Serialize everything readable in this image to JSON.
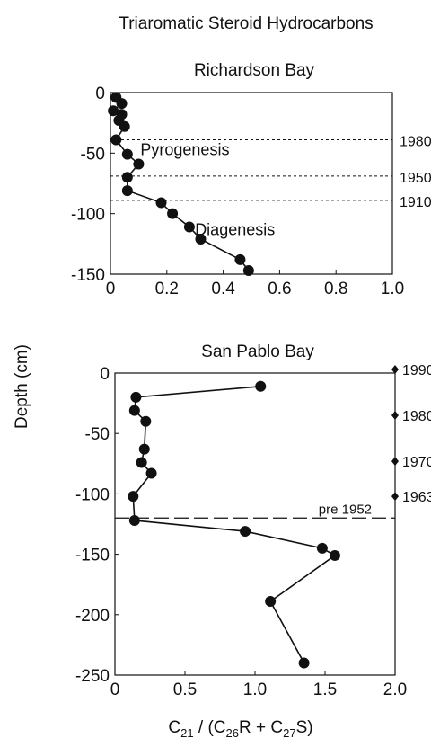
{
  "figure": {
    "title": "Triaromatic Steroid Hydrocarbons",
    "shared_ylabel": "Depth (cm)",
    "shared_xlabel": {
      "parts": [
        "C",
        "21",
        " / (C",
        "26",
        "R + C",
        "27",
        "S)"
      ]
    }
  },
  "chart_data": [
    {
      "type": "line",
      "title": "Richardson Bay",
      "xlabel": "C21 / (C26R + C27S)",
      "ylabel": "Depth (cm)",
      "xlim": [
        0,
        1.0
      ],
      "ylim": [
        -150,
        0
      ],
      "xticks": [
        "0",
        "0.2",
        "0.4",
        "0.6",
        "0.8",
        "1.0"
      ],
      "yticks": [
        "0",
        "-50",
        "-100",
        "-150"
      ],
      "xtick_values": [
        0,
        0.2,
        0.4,
        0.6,
        0.8,
        1.0
      ],
      "ytick_values": [
        0,
        -50,
        -100,
        -150
      ],
      "grid": false,
      "series": [
        {
          "x": [
            0.02,
            0.04,
            0.01,
            0.04,
            0.03,
            0.05,
            0.02,
            0.06,
            0.1,
            0.06,
            0.06,
            0.18,
            0.22,
            0.28,
            0.32,
            0.46,
            0.49
          ],
          "y": [
            -4,
            -9,
            -15,
            -18,
            -23,
            -28,
            -39,
            -51,
            -59,
            -70,
            -81,
            -91,
            -100,
            -111,
            -121,
            -138,
            -147
          ]
        }
      ],
      "reference_lines": [
        {
          "y": -39,
          "label": "1980",
          "style": "dotted"
        },
        {
          "y": -69,
          "label": "1950",
          "style": "dotted"
        },
        {
          "y": -89,
          "label": "1910",
          "style": "dotted"
        }
      ],
      "annotations": [
        {
          "text": "Pyrogenesis",
          "x": 0.1,
          "y": -53
        },
        {
          "text": "Diagenesis",
          "x": 0.3,
          "y": -119
        }
      ]
    },
    {
      "type": "line",
      "title": "San Pablo Bay",
      "xlabel": "C21 / (C26R + C27S)",
      "ylabel": "Depth (cm)",
      "xlim": [
        0,
        2.0
      ],
      "ylim": [
        -250,
        0
      ],
      "xticks": [
        "0",
        "0.5",
        "1.0",
        "1.5",
        "2.0"
      ],
      "yticks": [
        "0",
        "-50",
        "-100",
        "-150",
        "-200",
        "-250"
      ],
      "xtick_values": [
        0,
        0.5,
        1.0,
        1.5,
        2.0
      ],
      "ytick_values": [
        0,
        -50,
        -100,
        -150,
        -200,
        -250
      ],
      "grid": false,
      "series": [
        {
          "x": [
            1.04,
            0.15,
            0.14,
            0.22,
            0.21,
            0.19,
            0.26,
            0.13,
            0.14,
            0.93,
            1.48,
            1.57,
            1.11,
            1.35
          ],
          "y": [
            -11,
            -20,
            -31,
            -40,
            -63,
            -74,
            -83,
            -102,
            -122,
            -131,
            -145,
            -151,
            -189,
            -240
          ]
        }
      ],
      "reference_lines": [
        {
          "y": -120,
          "label": "pre 1952",
          "style": "dashed"
        }
      ],
      "date_markers": [
        {
          "y": 3,
          "label": "1990"
        },
        {
          "y": -35,
          "label": "1980"
        },
        {
          "y": -73,
          "label": "1970"
        },
        {
          "y": -102,
          "label": "1963"
        }
      ]
    }
  ]
}
